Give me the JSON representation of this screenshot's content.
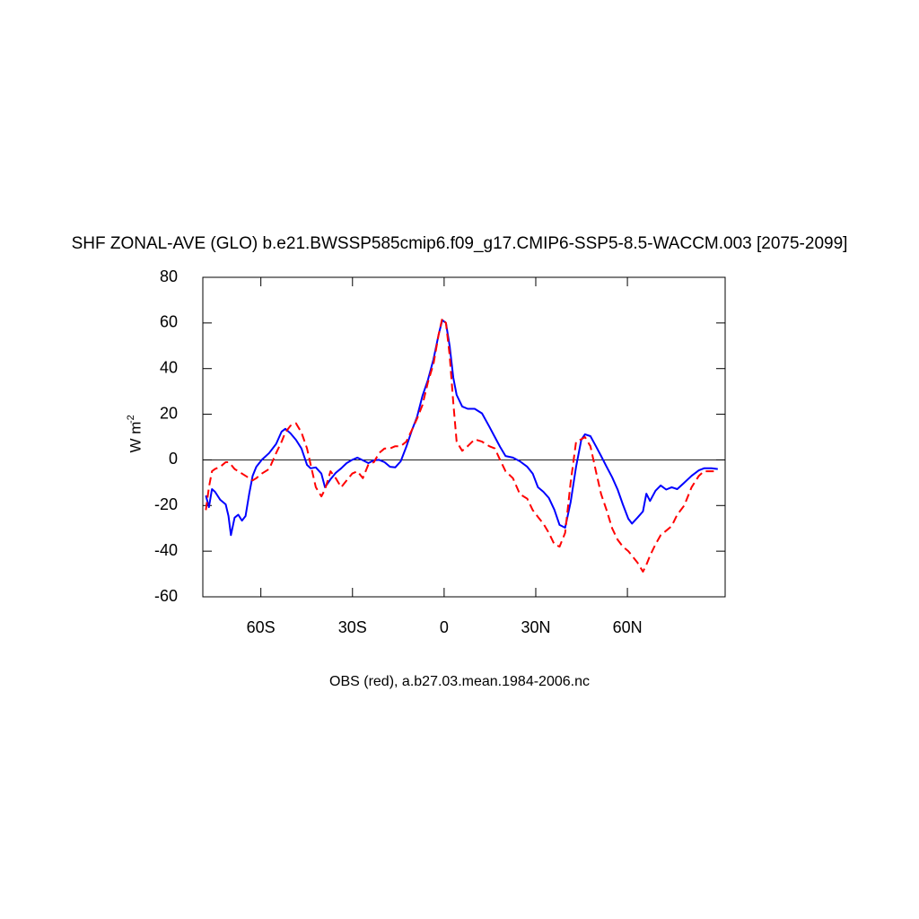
{
  "chart_data": {
    "type": "line",
    "title": "SHF ZONAL-AVE (GLO) b.e21.BWSSP585cmip6.f09_g17.CMIP6-SSP5-8.5-WACCM.003 [2075-2099]",
    "ylabel": "W m",
    "ylabel_superscript": "-2",
    "caption": "OBS (red), a.b27.03.mean.1984-2006.nc",
    "x": [
      -78,
      -77,
      -76,
      -75,
      -73.3,
      -71.5,
      -70.6,
      -69.8,
      -68.6,
      -67.4,
      -66.2,
      -65,
      -63.8,
      -62.7,
      -61.5,
      -59.7,
      -57.3,
      -55,
      -53.2,
      -52,
      -50.3,
      -48.5,
      -46.7,
      -44.9,
      -43.7,
      -42,
      -40.2,
      -39,
      -37.2,
      -35.5,
      -33.7,
      -31.9,
      -30.1,
      -28.4,
      -26.6,
      -24.8,
      -23,
      -21.3,
      -19.5,
      -17.7,
      -16,
      -14.2,
      -12.4,
      -10.6,
      -8.9,
      -7.1,
      -5.3,
      -3.5,
      -1.8,
      -0.6,
      0.6,
      1.8,
      3,
      4.1,
      5.9,
      7.7,
      10,
      12.4,
      14.8,
      16.6,
      18.3,
      20.1,
      22.5,
      24.8,
      27.2,
      29,
      30.7,
      32.5,
      34.3,
      36.1,
      37.8,
      39.6,
      41.4,
      43.2,
      44.9,
      46.1,
      47.9,
      49.7,
      51.4,
      53.2,
      55,
      56.8,
      58.5,
      60.3,
      61.5,
      63.3,
      65.1,
      66.2,
      67.4,
      69.2,
      70.9,
      72.7,
      74.5,
      76.3,
      78.6,
      81,
      83.4,
      85.1,
      87.5,
      89.6
    ],
    "series": [
      {
        "color": "#0000ff",
        "dashed": false,
        "values": [
          -15.6,
          -20.7,
          -12.8,
          -14,
          -17.5,
          -19.5,
          -24.6,
          -33,
          -25.3,
          -24,
          -26.6,
          -24.6,
          -14.8,
          -7,
          -3,
          0,
          3,
          7,
          12.4,
          13.6,
          11.6,
          8.8,
          5,
          -2.2,
          -3.7,
          -3.3,
          -6,
          -12,
          -8.5,
          -5.7,
          -3.7,
          -1.4,
          0,
          1,
          -0.2,
          -1.4,
          -0.2,
          0,
          -1,
          -3,
          -3.3,
          -0.6,
          5.7,
          12.8,
          18.7,
          28,
          35,
          44,
          55,
          61.3,
          60,
          50,
          36,
          28.5,
          23.4,
          22.4,
          22.4,
          20.4,
          14.6,
          10,
          5.7,
          1.7,
          1,
          -0.6,
          -3,
          -6,
          -12,
          -14,
          -16.7,
          -21.8,
          -28.5,
          -29.7,
          -18.6,
          -3,
          8.8,
          11.2,
          10.4,
          6,
          1.7,
          -3,
          -7.6,
          -13,
          -19.5,
          -25.8,
          -27.9,
          -25.3,
          -22.6,
          -14.8,
          -18,
          -13.5,
          -11.2,
          -13,
          -12,
          -12.8,
          -10,
          -7,
          -4.6,
          -3.7,
          -3.7,
          -4
        ]
      },
      {
        "color": "#ff0000",
        "dashed": true,
        "values": [
          -22,
          -12,
          -5,
          -4,
          -3,
          -1,
          -1,
          -2,
          -4,
          -5,
          -6,
          -7,
          -8,
          -9,
          -8,
          -6,
          -4,
          3,
          8,
          12,
          15,
          16,
          12,
          5,
          -2,
          -12,
          -16,
          -13,
          -5,
          -8,
          -12,
          -9,
          -6,
          -5,
          -8,
          -2,
          -1,
          3,
          5,
          5,
          6,
          6,
          8,
          13,
          18,
          24,
          34,
          42,
          55,
          62,
          60,
          46,
          25,
          8,
          4,
          6,
          9,
          8,
          6,
          5,
          0,
          -5,
          -8,
          -15,
          -17,
          -22,
          -25,
          -28,
          -32,
          -37,
          -38,
          -32,
          -10,
          8,
          9,
          10,
          6,
          -5,
          -15,
          -22,
          -30,
          -35,
          -38,
          -40,
          -42,
          -45,
          -49,
          -46,
          -42,
          -37,
          -33,
          -31,
          -29,
          -24,
          -20,
          -12,
          -7,
          -5,
          -5,
          -5
        ]
      }
    ],
    "xlim": [
      -79,
      92
    ],
    "xticks": [
      {
        "value": -60,
        "label": "60S"
      },
      {
        "value": -30,
        "label": "30S"
      },
      0,
      {
        "value": 30,
        "label": "30N"
      },
      {
        "value": 60,
        "label": "60N"
      }
    ],
    "ylim": [
      -60,
      80
    ],
    "yticks": [
      -60,
      -40,
      -20,
      0,
      20,
      40,
      60,
      80
    ],
    "reference_line": 0
  }
}
